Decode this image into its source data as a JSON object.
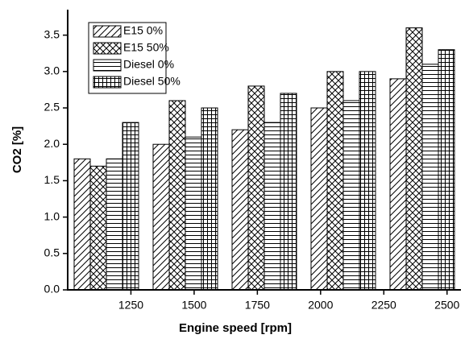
{
  "chart_data": {
    "type": "bar",
    "x_label": "Engine speed [rpm]",
    "y_label": "CO2 [%]",
    "categories": [
      null,
      null,
      null,
      null,
      null
    ],
    "series": [
      {
        "name": "E15 0%",
        "color": "#000000",
        "hatch": "diagonal",
        "values": [
          1.8,
          2.0,
          2.2,
          2.5,
          2.9
        ]
      },
      {
        "name": "E15 50%",
        "color": "#000000",
        "hatch": "cross",
        "values": [
          1.7,
          2.6,
          2.8,
          3.0,
          3.6
        ]
      },
      {
        "name": "Diesel 0%",
        "color": "#000000",
        "hatch": "horizontal",
        "values": [
          1.8,
          2.1,
          2.3,
          2.6,
          3.1
        ]
      },
      {
        "name": "Diesel 50%",
        "color": "#000000",
        "hatch": "grid",
        "values": [
          2.3,
          2.5,
          2.7,
          3.0,
          3.3
        ]
      }
    ],
    "ylim": [
      0,
      3.85
    ],
    "yticks": [
      {
        "value": 0,
        "label": "0.0"
      },
      0.5,
      {
        "value": 1,
        "label": "1.0"
      },
      1.5,
      {
        "value": 2,
        "label": "2.0"
      },
      2.5,
      {
        "value": 3,
        "label": "3.0"
      },
      3.5
    ],
    "xlim": [
      1000,
      2555
    ],
    "xticks": [
      1250,
      1500,
      1750,
      2000,
      2250,
      2500
    ],
    "legend": "upper left"
  }
}
